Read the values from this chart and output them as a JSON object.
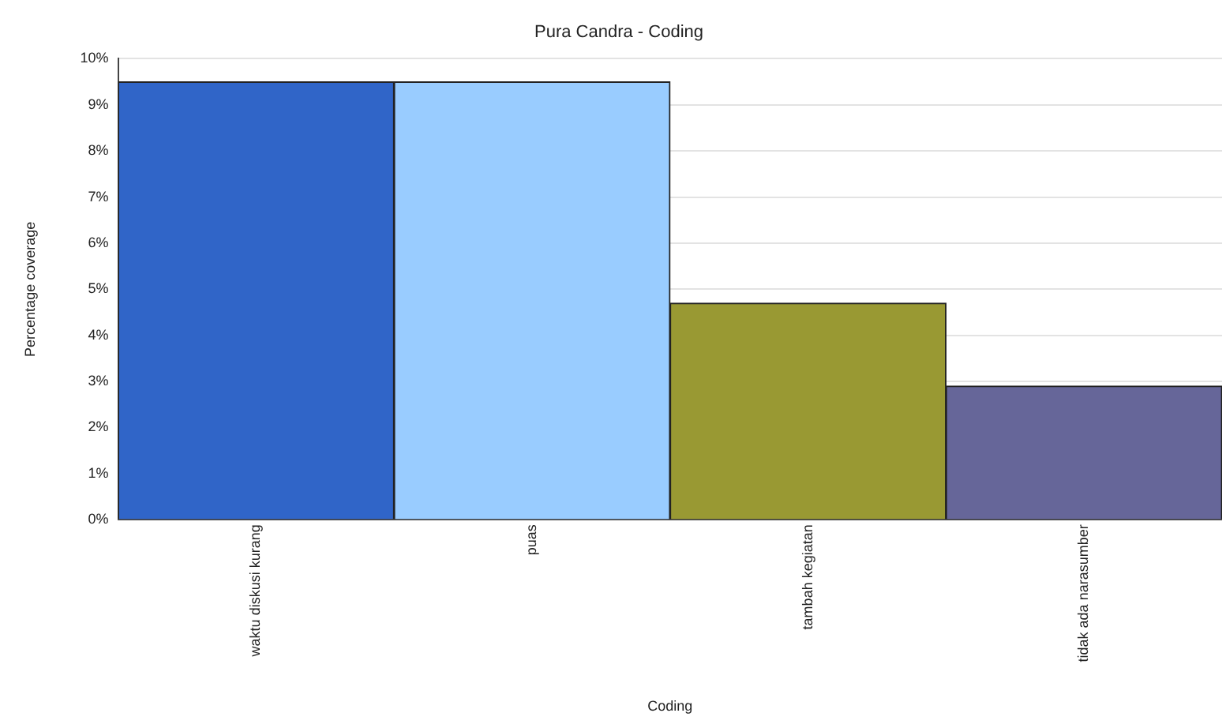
{
  "chart_data": {
    "type": "bar",
    "title": "Pura Candra - Coding",
    "xlabel": "Coding",
    "ylabel": "Percentage coverage",
    "categories": [
      "waktu diskusi kurang",
      "puas",
      "tambah kegiatan",
      "tidak ada narasumber"
    ],
    "values": [
      9.5,
      9.5,
      4.7,
      2.9
    ],
    "colors": [
      "#3065c8",
      "#99ccff",
      "#999933",
      "#666699"
    ],
    "ylim": [
      0,
      10
    ],
    "yticks": [
      {
        "value": 0,
        "label": "0%"
      },
      {
        "value": 1,
        "label": "1%"
      },
      {
        "value": 2,
        "label": "2%"
      },
      {
        "value": 3,
        "label": "3%"
      },
      {
        "value": 4,
        "label": "4%"
      },
      {
        "value": 5,
        "label": "5%"
      },
      {
        "value": 6,
        "label": "6%"
      },
      {
        "value": 7,
        "label": "7%"
      },
      {
        "value": 8,
        "label": "8%"
      },
      {
        "value": 9,
        "label": "9%"
      },
      {
        "value": 10,
        "label": "10%"
      }
    ],
    "grid": "y"
  }
}
